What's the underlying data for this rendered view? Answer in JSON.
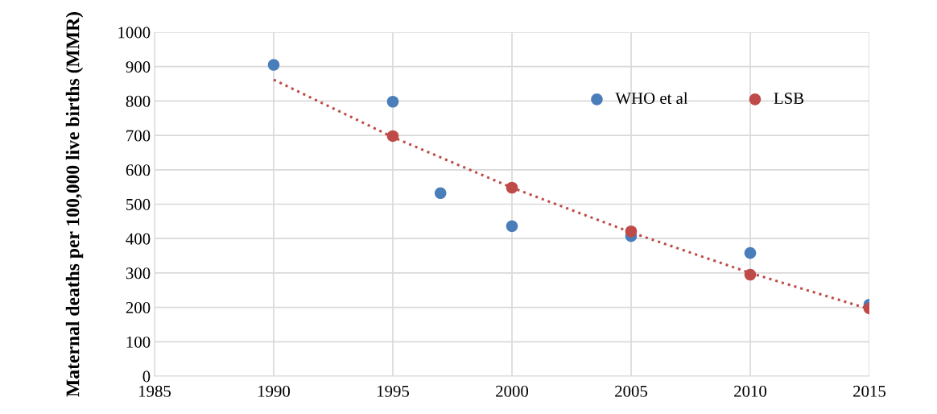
{
  "chart_data": {
    "type": "scatter",
    "ylabel": "Maternal deaths per 100,000 live births (MMR)",
    "series": [
      {
        "name": "WHO et al",
        "color": "#4a7ebb",
        "x": [
          1990,
          1995,
          1997,
          2000,
          2005,
          2010,
          2015
        ],
        "values": [
          905,
          798,
          532,
          436,
          407,
          358,
          208
        ]
      },
      {
        "type": "line",
        "color": "#be4b48",
        "line_style": "dotted",
        "marker": "none",
        "x": [
          1990,
          1995,
          2000,
          2005,
          2010,
          2015
        ],
        "values": [
          862,
          695,
          548,
          418,
          300,
          195
        ]
      },
      {
        "name": "LSB",
        "color": "#be4b48",
        "x": [
          1995,
          2000,
          2005,
          2010,
          2015
        ],
        "values": [
          698,
          548,
          421,
          295,
          197
        ]
      }
    ],
    "xlim": [
      1985,
      2015
    ],
    "xticks": [
      1985,
      1990,
      1995,
      2000,
      2005,
      2010,
      2015
    ],
    "ylim": [
      0,
      1000
    ],
    "yticks": [
      0,
      100,
      200,
      300,
      400,
      500,
      600,
      700,
      800,
      900,
      1000
    ],
    "grid": true,
    "legend": "top right",
    "marker": "circle"
  }
}
